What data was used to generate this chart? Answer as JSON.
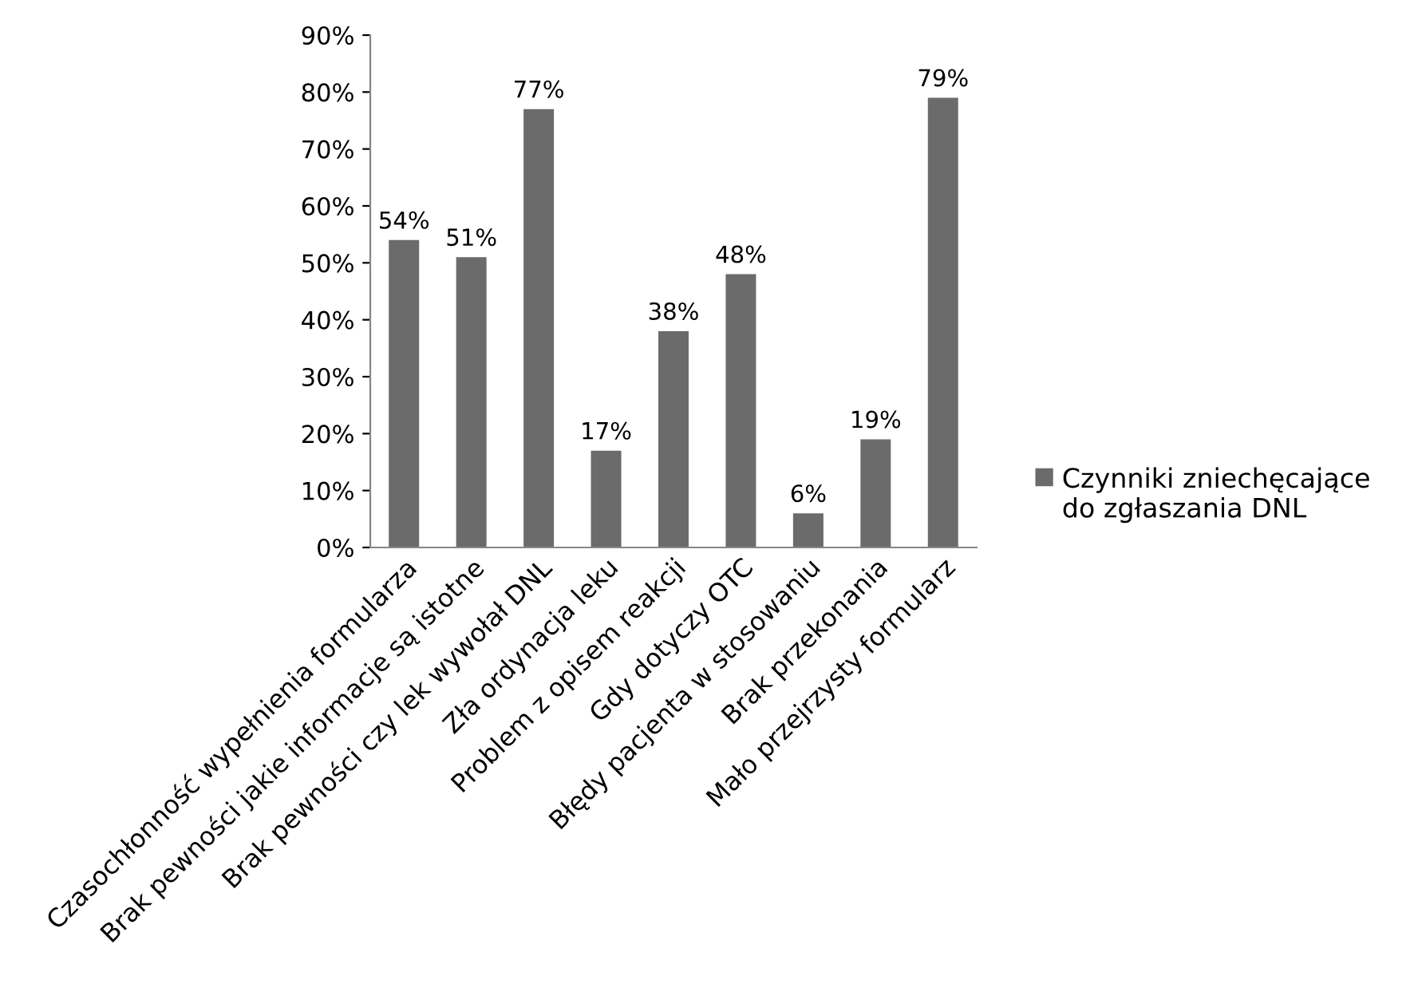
{
  "chart_data": {
    "type": "bar",
    "categories": [
      "Czasochłonność wypełnienia formularza",
      "Brak pewności jakie informacje są istotne",
      "Brak pewności czy lek wywołał DNL",
      "Zła ordynacja leku",
      "Problem z opisem reakcji",
      "Gdy dotyczy OTC",
      "Błędy pacjenta w stosowaniu",
      "Brak przekonania",
      "Mało przejrzysty formularz"
    ],
    "series": [
      {
        "name": "Czynniki zniechęcające do zgłaszania DNL",
        "color": "#6b6b6b",
        "values": [
          54,
          51,
          77,
          17,
          38,
          48,
          6,
          19,
          79
        ],
        "value_labels": [
          "54%",
          "51%",
          "77%",
          "17%",
          "38%",
          "48%",
          "6%",
          "19%",
          "79%"
        ]
      }
    ],
    "ylim": [
      0,
      90
    ],
    "yticks": [
      {
        "value": 0,
        "label": "0%"
      },
      {
        "value": 10,
        "label": "10%"
      },
      {
        "value": 20,
        "label": "20%"
      },
      {
        "value": 30,
        "label": "30%"
      },
      {
        "value": 40,
        "label": "40%"
      },
      {
        "value": 50,
        "label": "50%"
      },
      {
        "value": 60,
        "label": "60%"
      },
      {
        "value": 70,
        "label": "70%"
      },
      {
        "value": 80,
        "label": "80%"
      },
      {
        "value": 90,
        "label": "90%"
      }
    ],
    "grid": false,
    "legend": "right"
  }
}
